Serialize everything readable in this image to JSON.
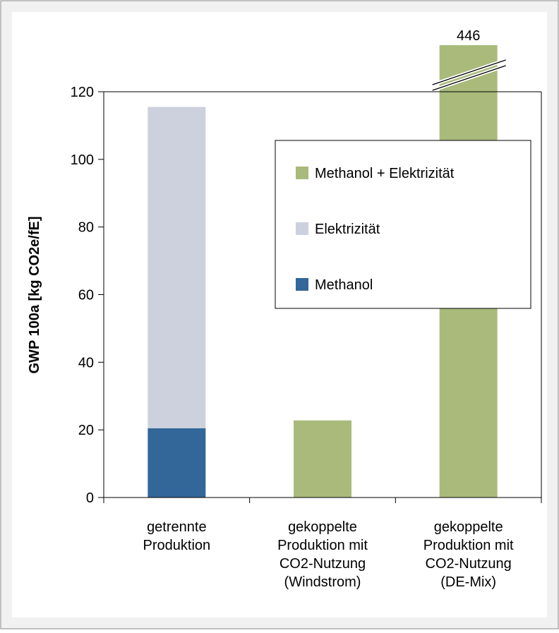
{
  "chart_data": {
    "type": "bar",
    "stacked": true,
    "ylabel": "GWP 100a [kg CO2e/fE]",
    "ylim": [
      0,
      120
    ],
    "yticks": [
      0,
      20,
      40,
      60,
      80,
      100,
      120
    ],
    "axis_break": true,
    "categories": [
      [
        "getrennte",
        "Produktion"
      ],
      [
        "gekoppelte",
        "Produktion mit",
        "CO2-Nutzung",
        "(Windstrom)"
      ],
      [
        "gekoppelte",
        "Produktion mit",
        "CO2-Nutzung",
        "(DE-Mix)"
      ]
    ],
    "series": [
      {
        "name": "Methanol",
        "color": "#336699",
        "values": [
          20.5,
          0,
          0
        ]
      },
      {
        "name": "Elektrizität",
        "color": "#ccd1dd",
        "values": [
          95,
          0,
          0
        ]
      },
      {
        "name": "Methanol + Elektrizität",
        "color": "#a9ba7b",
        "values": [
          0,
          22.8,
          446
        ]
      }
    ],
    "data_labels": [
      {
        "category_index": 2,
        "text": "446"
      }
    ],
    "legend": {
      "placement": "center-right",
      "order": [
        "Methanol + Elektrizität",
        "Elektrizität",
        "Methanol"
      ]
    },
    "grid": false
  }
}
